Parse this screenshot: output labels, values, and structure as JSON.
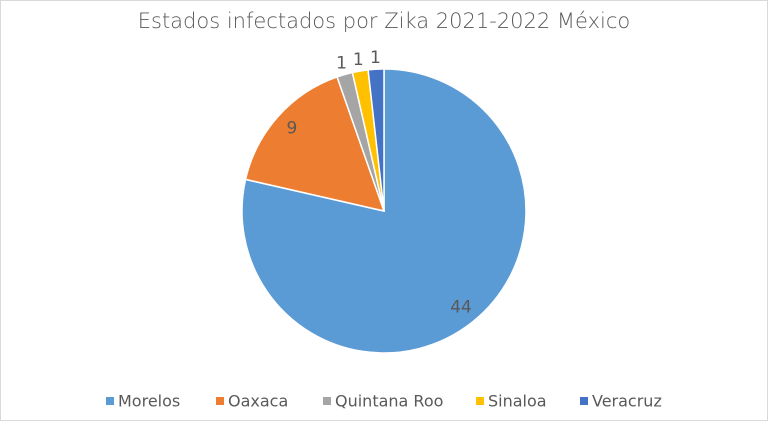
{
  "chart_data": {
    "type": "pie",
    "title": "Estados infectados por Zika 2021-2022 México",
    "categories": [
      "Morelos",
      "Oaxaca",
      "Quintana Roo",
      "Sinaloa",
      "Veracruz"
    ],
    "values": [
      44,
      9,
      1,
      1,
      1
    ],
    "colors": [
      "#5b9bd5",
      "#ed7d31",
      "#a5a5a5",
      "#ffc000",
      "#4472c4"
    ],
    "legend": "bottom"
  }
}
